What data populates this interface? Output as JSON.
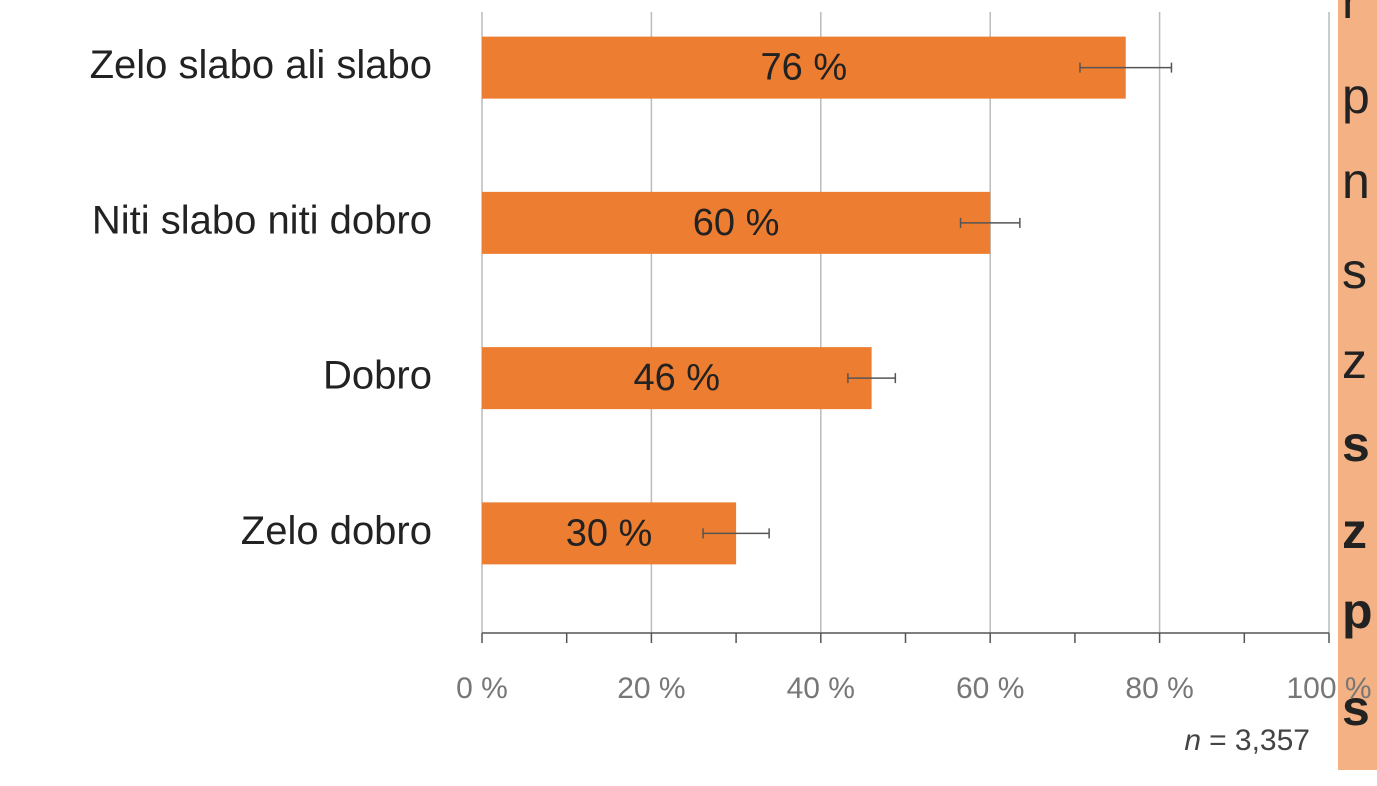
{
  "chart_data": {
    "type": "hbar",
    "categories": [
      "Zelo slabo ali slabo",
      "Niti slabo niti dobro",
      "Dobro",
      "Zelo dobro"
    ],
    "values": [
      76,
      60,
      46,
      30
    ],
    "value_labels": [
      "76 %",
      "60 %",
      "46 %",
      "30 %"
    ],
    "errors": [
      5.4,
      3.5,
      2.8,
      3.9
    ],
    "color": "#ed7d31",
    "xlim": [
      0,
      100
    ],
    "xticks": [
      {
        "value": 0,
        "label": "0 %"
      },
      {
        "value": 20,
        "label": "20 %"
      },
      {
        "value": 40,
        "label": "40 %"
      },
      {
        "value": 60,
        "label": "60 %"
      },
      {
        "value": 80,
        "label": "80 %"
      },
      {
        "value": 100,
        "label": "100 %"
      }
    ],
    "xminorticks": [
      10,
      30,
      50,
      70,
      90
    ],
    "grid": true,
    "note_var": "n",
    "note_value": "= 3,357"
  },
  "side_panel": {
    "lines": [
      "r",
      "p",
      "n",
      "s",
      "z",
      "s",
      "z",
      "p",
      "s"
    ]
  }
}
